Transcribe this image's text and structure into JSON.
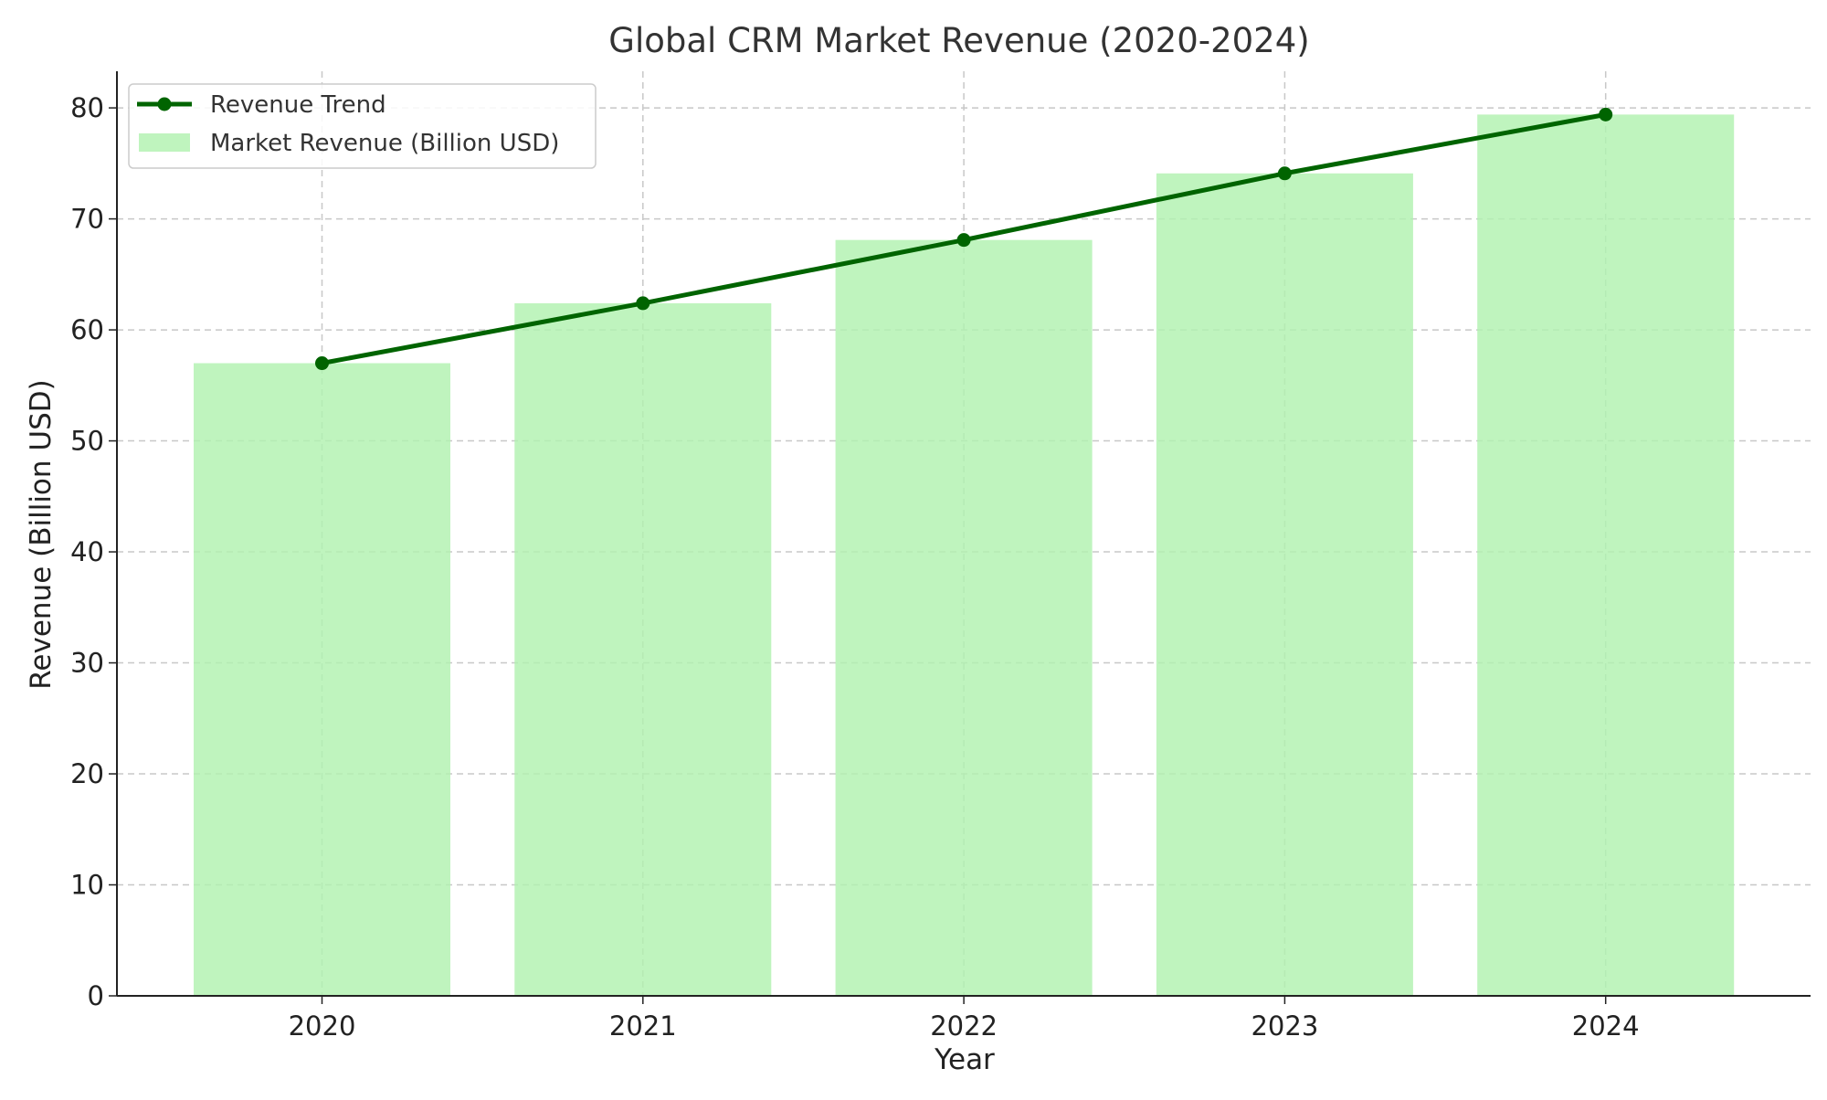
{
  "chart_data": {
    "type": "bar",
    "title": "Global CRM Market Revenue (2020-2024)",
    "xlabel": "Year",
    "ylabel": "Revenue (Billion USD)",
    "categories": [
      "2020",
      "2021",
      "2022",
      "2023",
      "2024"
    ],
    "ylim": [
      0,
      83.3
    ],
    "yticks": [
      0,
      10,
      20,
      30,
      40,
      50,
      60,
      70,
      80
    ],
    "grid": true,
    "legend_position": "top-left",
    "series": [
      {
        "name": "Market Revenue (Billion USD)",
        "type": "bar",
        "color": "#b1f2b0",
        "values": [
          57.0,
          62.4,
          68.1,
          74.1,
          79.4
        ]
      },
      {
        "name": "Revenue Trend",
        "type": "line",
        "color": "#006400",
        "marker": "circle",
        "values": [
          57.0,
          62.4,
          68.1,
          74.1,
          79.4
        ]
      }
    ]
  }
}
